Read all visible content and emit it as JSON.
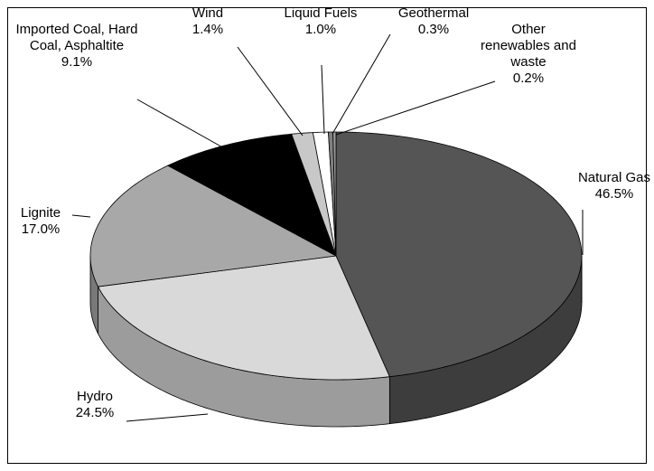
{
  "chart_data": {
    "type": "pie3d",
    "categories": [
      "Natural Gas",
      "Hydro",
      "Lignite",
      "Imported Coal, Hard Coal, Asphaltite",
      "Wind",
      "Liquid Fuels",
      "Geothermal",
      "Other renewables and waste"
    ],
    "values": [
      46.5,
      24.5,
      17.0,
      9.1,
      1.4,
      1.0,
      0.3,
      0.2
    ],
    "value_labels": [
      "46.5%",
      "24.5%",
      "17.0%",
      "9.1%",
      "1.4%",
      "1.0%",
      "0.3%",
      "0.2%"
    ],
    "colors": [
      "#555555",
      "#d9d9d9",
      "#a8a8a8",
      "#000000",
      "#c8c8c8",
      "#ffffff",
      "#808080",
      "#9a9a9a"
    ]
  }
}
